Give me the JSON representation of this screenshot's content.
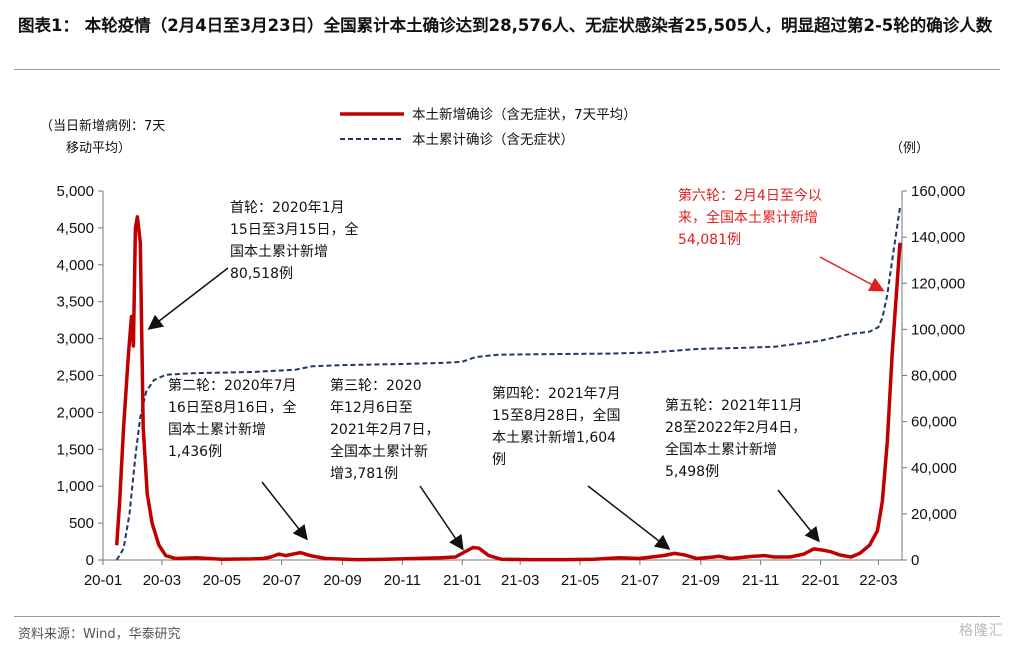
{
  "title": "图表1： 本轮疫情（2月4日至3月23日）全国累计本土确诊达到28,576人、无症状感染者25,505人，明显超过第2-5轮的确诊人数",
  "source": "资料来源：Wind，华泰研究",
  "watermark": "格隆汇",
  "colors": {
    "daily": "#c00000",
    "cumulative": "#1f3864",
    "annotation_red": "#e02020"
  },
  "chart_data": {
    "type": "line",
    "left_axis_label": [
      "（当日新增病例：7天",
      "移动平均）"
    ],
    "right_axis_label": "（例）",
    "left_ylim": [
      0,
      5000
    ],
    "right_ylim": [
      0,
      160000
    ],
    "left_ticks": [
      "5,000",
      "4,500",
      "4,000",
      "3,500",
      "3,000",
      "2,500",
      "2,000",
      "1,500",
      "1,000",
      "500",
      "0"
    ],
    "right_ticks": [
      "160,000",
      "140,000",
      "120,000",
      "100,000",
      "80,000",
      "60,000",
      "40,000",
      "20,000",
      "0"
    ],
    "x_ticks": [
      "20-01",
      "20-03",
      "20-05",
      "20-07",
      "20-09",
      "20-11",
      "21-01",
      "21-03",
      "21-05",
      "21-07",
      "21-09",
      "21-11",
      "22-01",
      "22-03"
    ],
    "series": [
      {
        "name": "本土新增确诊（含无症状，7天平均）",
        "style": "solid",
        "axis": "left",
        "points": [
          [
            "2020-01-15",
            200
          ],
          [
            "2020-01-18",
            800
          ],
          [
            "2020-01-22",
            1800
          ],
          [
            "2020-01-27",
            2800
          ],
          [
            "2020-01-30",
            3300
          ],
          [
            "2020-02-01",
            2900
          ],
          [
            "2020-02-03",
            4500
          ],
          [
            "2020-02-05",
            4650
          ],
          [
            "2020-02-08",
            4300
          ],
          [
            "2020-02-11",
            1800
          ],
          [
            "2020-02-15",
            900
          ],
          [
            "2020-02-20",
            500
          ],
          [
            "2020-02-27",
            200
          ],
          [
            "2020-03-05",
            60
          ],
          [
            "2020-03-15",
            20
          ],
          [
            "2020-04-05",
            30
          ],
          [
            "2020-05-01",
            10
          ],
          [
            "2020-06-01",
            15
          ],
          [
            "2020-06-12",
            20
          ],
          [
            "2020-06-20",
            40
          ],
          [
            "2020-06-28",
            80
          ],
          [
            "2020-07-05",
            60
          ],
          [
            "2020-07-20",
            100
          ],
          [
            "2020-07-30",
            60
          ],
          [
            "2020-08-15",
            20
          ],
          [
            "2020-09-15",
            5
          ],
          [
            "2020-10-15",
            10
          ],
          [
            "2020-11-15",
            20
          ],
          [
            "2020-12-10",
            30
          ],
          [
            "2020-12-25",
            40
          ],
          [
            "2021-01-05",
            120
          ],
          [
            "2021-01-12",
            170
          ],
          [
            "2021-01-18",
            160
          ],
          [
            "2021-01-28",
            60
          ],
          [
            "2021-02-10",
            10
          ],
          [
            "2021-03-15",
            5
          ],
          [
            "2021-04-15",
            5
          ],
          [
            "2021-05-15",
            10
          ],
          [
            "2021-06-10",
            30
          ],
          [
            "2021-06-30",
            20
          ],
          [
            "2021-07-25",
            60
          ],
          [
            "2021-08-05",
            90
          ],
          [
            "2021-08-15",
            70
          ],
          [
            "2021-08-28",
            20
          ],
          [
            "2021-09-14",
            40
          ],
          [
            "2021-09-20",
            50
          ],
          [
            "2021-10-01",
            20
          ],
          [
            "2021-10-25",
            50
          ],
          [
            "2021-11-05",
            60
          ],
          [
            "2021-11-15",
            40
          ],
          [
            "2021-12-01",
            40
          ],
          [
            "2021-12-15",
            80
          ],
          [
            "2021-12-25",
            150
          ],
          [
            "2022-01-05",
            130
          ],
          [
            "2022-01-12",
            110
          ],
          [
            "2022-01-20",
            70
          ],
          [
            "2022-02-01",
            40
          ],
          [
            "2022-02-10",
            90
          ],
          [
            "2022-02-20",
            200
          ],
          [
            "2022-02-28",
            400
          ],
          [
            "2022-03-05",
            800
          ],
          [
            "2022-03-10",
            1600
          ],
          [
            "2022-03-15",
            2800
          ],
          [
            "2022-03-23",
            4300
          ]
        ]
      },
      {
        "name": "本土累计确诊（含无症状）",
        "style": "dashed",
        "axis": "right",
        "points": [
          [
            "2020-01-15",
            0
          ],
          [
            "2020-01-22",
            5000
          ],
          [
            "2020-01-28",
            20000
          ],
          [
            "2020-02-03",
            45000
          ],
          [
            "2020-02-08",
            62000
          ],
          [
            "2020-02-14",
            73000
          ],
          [
            "2020-02-22",
            78000
          ],
          [
            "2020-03-05",
            80300
          ],
          [
            "2020-04-01",
            81000
          ],
          [
            "2020-06-01",
            81500
          ],
          [
            "2020-07-15",
            82500
          ],
          [
            "2020-08-01",
            84000
          ],
          [
            "2020-09-01",
            84500
          ],
          [
            "2020-11-01",
            85000
          ],
          [
            "2020-12-15",
            85500
          ],
          [
            "2021-01-01",
            86000
          ],
          [
            "2021-01-15",
            88000
          ],
          [
            "2021-02-07",
            89000
          ],
          [
            "2021-04-01",
            89300
          ],
          [
            "2021-06-01",
            89500
          ],
          [
            "2021-07-15",
            90000
          ],
          [
            "2021-08-28",
            91500
          ],
          [
            "2021-10-15",
            92000
          ],
          [
            "2021-11-15",
            92500
          ],
          [
            "2021-12-31",
            95000
          ],
          [
            "2022-01-31",
            98000
          ],
          [
            "2022-02-20",
            99000
          ],
          [
            "2022-03-01",
            101000
          ],
          [
            "2022-03-05",
            105000
          ],
          [
            "2022-03-10",
            115000
          ],
          [
            "2022-03-15",
            130000
          ],
          [
            "2022-03-23",
            153000
          ]
        ]
      }
    ],
    "annotations": [
      {
        "lines": [
          "首轮：2020年1月",
          "15日至3月15日，全",
          "国本土累计新增",
          "80,518例"
        ],
        "color": "black"
      },
      {
        "lines": [
          "第二轮：2020年7月",
          "16日至8月16日，全",
          "国本土累计新增",
          "1,436例"
        ],
        "color": "black"
      },
      {
        "lines": [
          "第三轮：2020",
          "年12月6日至",
          "2021年2月7日，",
          "全国本土累计新",
          "增3,781例"
        ],
        "color": "black"
      },
      {
        "lines": [
          "第四轮：2021年7月",
          "15至8月28日，全国",
          "本土累计新增1,604",
          "例"
        ],
        "color": "black"
      },
      {
        "lines": [
          "第五轮：2021年11月",
          "28至2022年2月4日，",
          "全国本土累计新增",
          "5,498例"
        ],
        "color": "black"
      },
      {
        "lines": [
          "第六轮：2月4日至今以",
          "来，全国本土累计新增",
          "54,081例"
        ],
        "color": "red"
      }
    ]
  }
}
